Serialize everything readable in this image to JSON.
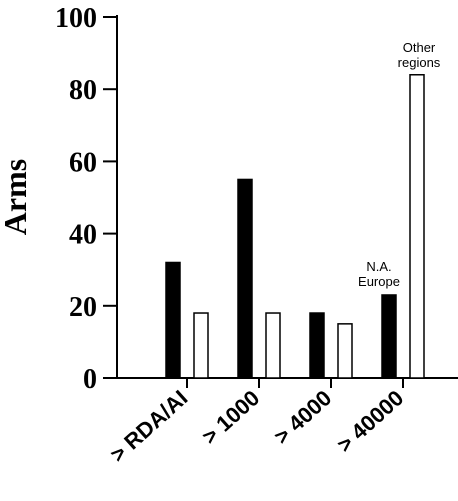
{
  "chart_data": {
    "type": "bar",
    "title": "",
    "xlabel": "",
    "ylabel": "Arms",
    "ylim": [
      0,
      100
    ],
    "yticks": [
      0,
      20,
      40,
      60,
      80,
      100
    ],
    "categories": [
      "> RDA/AI",
      "> 1000",
      "> 4000",
      "> 40000"
    ],
    "series": [
      {
        "fill": "#000000",
        "values": [
          32,
          55,
          18,
          23
        ]
      },
      {
        "fill": "#ffffff",
        "values": [
          18,
          18,
          15,
          84
        ]
      }
    ],
    "annotations": [
      {
        "lines": [
          "N.A.",
          "Europe"
        ]
      },
      {
        "lines": [
          "Other",
          "regions"
        ]
      }
    ],
    "grid": false,
    "legend": "none"
  }
}
